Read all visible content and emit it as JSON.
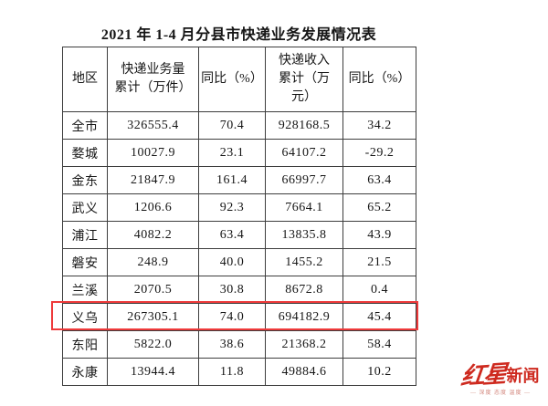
{
  "title": "2021 年 1-4 月分县市快递业务发展情况表",
  "table": {
    "headers": [
      "地区",
      "快递业务量\n累计（万件）",
      "同比（%）",
      "快递收入\n累计（万\n元）",
      "同比（%）"
    ],
    "rows": [
      {
        "cells": [
          "全市",
          "326555.4",
          "70.4",
          "928168.5",
          "34.2"
        ]
      },
      {
        "cells": [
          "婺城",
          "10027.9",
          "23.1",
          "64107.2",
          "-29.2"
        ]
      },
      {
        "cells": [
          "金东",
          "21847.9",
          "161.4",
          "66997.7",
          "63.4"
        ]
      },
      {
        "cells": [
          "武义",
          "1206.6",
          "92.3",
          "7664.1",
          "65.2"
        ]
      },
      {
        "cells": [
          "浦江",
          "4082.2",
          "63.4",
          "13835.8",
          "43.9"
        ]
      },
      {
        "cells": [
          "磐安",
          "248.9",
          "40.0",
          "1455.2",
          "21.5"
        ]
      },
      {
        "cells": [
          "兰溪",
          "2070.5",
          "30.8",
          "8672.8",
          "0.4"
        ]
      },
      {
        "cells": [
          "义乌",
          "267305.1",
          "74.0",
          "694182.9",
          "45.4"
        ]
      },
      {
        "cells": [
          "东阳",
          "5822.0",
          "38.6",
          "21368.2",
          "58.4"
        ]
      },
      {
        "cells": [
          "永康",
          "13944.4",
          "11.8",
          "49884.6",
          "10.2"
        ]
      }
    ]
  },
  "highlight": {
    "highlighted_region": "义乌",
    "color": "#ee3a3b"
  },
  "watermark": {
    "brand_script": "红星",
    "brand_bold": "新闻",
    "tagline": "— 深度 态度 温度 —",
    "color": "#ce2a1f"
  },
  "colors": {
    "table_border": "#3d3d3d",
    "text": "#161616",
    "background": "#ffffff"
  },
  "chart_data": {
    "type": "table",
    "title": "2021 年 1-4 月分县市快递业务发展情况表",
    "columns": [
      "地区",
      "快递业务量累计（万件）",
      "同比（%）",
      "快递收入累计（万元）",
      "同比（%）"
    ],
    "rows": [
      [
        "全市",
        326555.4,
        70.4,
        928168.5,
        34.2
      ],
      [
        "婺城",
        10027.9,
        23.1,
        64107.2,
        -29.2
      ],
      [
        "金东",
        21847.9,
        161.4,
        66997.7,
        63.4
      ],
      [
        "武义",
        1206.6,
        92.3,
        7664.1,
        65.2
      ],
      [
        "浦江",
        4082.2,
        63.4,
        13835.8,
        43.9
      ],
      [
        "磐安",
        248.9,
        40.0,
        1455.2,
        21.5
      ],
      [
        "兰溪",
        2070.5,
        30.8,
        8672.8,
        0.4
      ],
      [
        "义乌",
        267305.1,
        74.0,
        694182.9,
        45.4
      ],
      [
        "东阳",
        5822.0,
        38.6,
        21368.2,
        58.4
      ],
      [
        "永康",
        13944.4,
        11.8,
        49884.6,
        10.2
      ]
    ],
    "highlighted_row": "义乌",
    "annotations": [
      "红星新闻 watermark bottom-right"
    ]
  }
}
